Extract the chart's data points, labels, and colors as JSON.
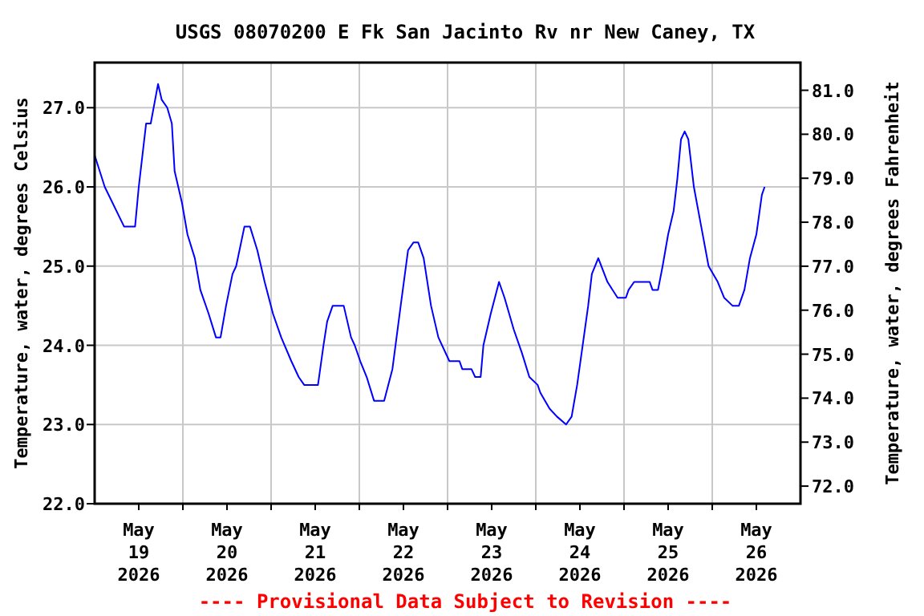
{
  "chart_data": {
    "type": "line",
    "title": "USGS 08070200 E Fk San Jacinto Rv nr New Caney, TX",
    "ylabel": "Temperature, water, degrees Celsius",
    "y2label": "Temperature, water, degrees Fahrenheit",
    "annotations": [
      "---- Provisional Data Subject to Revision ----"
    ],
    "x": [
      "2026-05-19T00:00",
      "2026-05-19T02:45",
      "2026-05-19T08:00",
      "2026-05-19T11:00",
      "2026-05-19T12:00",
      "2026-05-19T14:00",
      "2026-05-19T15:15",
      "2026-05-19T17:15",
      "2026-05-19T18:15",
      "2026-05-19T19:45",
      "2026-05-19T21:00",
      "2026-05-19T21:45",
      "2026-05-19T23:45",
      "2026-05-20T01:15",
      "2026-05-20T03:15",
      "2026-05-20T04:45",
      "2026-05-20T07:00",
      "2026-05-20T09:00",
      "2026-05-20T10:15",
      "2026-05-20T11:45",
      "2026-05-20T13:30",
      "2026-05-20T14:30",
      "2026-05-20T16:45",
      "2026-05-20T18:15",
      "2026-05-20T20:15",
      "2026-05-20T22:15",
      "2026-05-21T00:30",
      "2026-05-21T02:45",
      "2026-05-21T05:30",
      "2026-05-21T07:30",
      "2026-05-21T09:00",
      "2026-05-21T12:45",
      "2026-05-21T14:15",
      "2026-05-21T15:15",
      "2026-05-21T16:45",
      "2026-05-21T19:45",
      "2026-05-21T21:45",
      "2026-05-21T22:45",
      "2026-05-22T00:15",
      "2026-05-22T02:00",
      "2026-05-22T04:00",
      "2026-05-22T06:45",
      "2026-05-22T09:00",
      "2026-05-22T11:15",
      "2026-05-22T13:15",
      "2026-05-22T14:45",
      "2026-05-22T16:00",
      "2026-05-22T17:30",
      "2026-05-22T19:30",
      "2026-05-22T21:30",
      "2026-05-23T00:30",
      "2026-05-23T03:15",
      "2026-05-23T04:00",
      "2026-05-23T06:30",
      "2026-05-23T07:30",
      "2026-05-23T09:00",
      "2026-05-23T09:45",
      "2026-05-23T11:45",
      "2026-05-23T14:00",
      "2026-05-23T15:30",
      "2026-05-23T18:00",
      "2026-05-23T20:15",
      "2026-05-23T22:15",
      "2026-05-24T00:30",
      "2026-05-24T01:15",
      "2026-05-24T03:45",
      "2026-05-24T05:45",
      "2026-05-24T08:15",
      "2026-05-24T09:45",
      "2026-05-24T11:15",
      "2026-05-24T12:45",
      "2026-05-24T14:15",
      "2026-05-24T15:15",
      "2026-05-24T17:00",
      "2026-05-24T19:30",
      "2026-05-24T22:15",
      "2026-05-25T00:30",
      "2026-05-25T01:15",
      "2026-05-25T02:45",
      "2026-05-25T07:00",
      "2026-05-25T07:45",
      "2026-05-25T09:15",
      "2026-05-25T10:30",
      "2026-05-25T12:00",
      "2026-05-25T13:30",
      "2026-05-25T14:30",
      "2026-05-25T15:30",
      "2026-05-25T16:30",
      "2026-05-25T17:30",
      "2026-05-25T19:00",
      "2026-05-25T21:00",
      "2026-05-25T23:00",
      "2026-05-26T01:30",
      "2026-05-26T03:15",
      "2026-05-26T05:30",
      "2026-05-26T07:15",
      "2026-05-26T08:45",
      "2026-05-26T10:15",
      "2026-05-26T12:00",
      "2026-05-26T13:30",
      "2026-05-26T14:15"
    ],
    "series": [
      {
        "color": "#0000ff",
        "values": [
          26.4,
          26.0,
          25.5,
          25.5,
          26.0,
          26.8,
          26.8,
          27.3,
          27.1,
          27.0,
          26.8,
          26.2,
          25.8,
          25.4,
          25.1,
          24.7,
          24.4,
          24.1,
          24.1,
          24.5,
          24.9,
          25.0,
          25.5,
          25.5,
          25.2,
          24.8,
          24.4,
          24.1,
          23.8,
          23.6,
          23.5,
          23.5,
          24.0,
          24.3,
          24.5,
          24.5,
          24.1,
          24.0,
          23.8,
          23.6,
          23.3,
          23.3,
          23.7,
          24.5,
          25.2,
          25.3,
          25.3,
          25.1,
          24.5,
          24.1,
          23.8,
          23.8,
          23.7,
          23.7,
          23.6,
          23.6,
          24.0,
          24.4,
          24.8,
          24.6,
          24.2,
          23.9,
          23.6,
          23.5,
          23.4,
          23.2,
          23.1,
          23.0,
          23.1,
          23.5,
          24.0,
          24.5,
          24.9,
          25.1,
          24.8,
          24.6,
          24.6,
          24.7,
          24.8,
          24.8,
          24.7,
          24.7,
          25.0,
          25.4,
          25.7,
          26.1,
          26.6,
          26.7,
          26.6,
          26.0,
          25.5,
          25.0,
          24.8,
          24.6,
          24.5,
          24.5,
          24.7,
          25.1,
          25.4,
          25.9,
          26.0
        ]
      }
    ],
    "xlim": [
      "2026-05-19T00:00",
      "2026-05-27T00:00"
    ],
    "xticks": [
      {
        "value": "2026-05-19T12:00",
        "label": "May\n19\n2026"
      },
      {
        "value": "2026-05-20T00:00",
        "label": null
      },
      {
        "value": "2026-05-20T12:00",
        "label": "May\n20\n2026"
      },
      {
        "value": "2026-05-21T00:00",
        "label": null
      },
      {
        "value": "2026-05-21T12:00",
        "label": "May\n21\n2026"
      },
      {
        "value": "2026-05-22T00:00",
        "label": null
      },
      {
        "value": "2026-05-22T12:00",
        "label": "May\n22\n2026"
      },
      {
        "value": "2026-05-23T00:00",
        "label": null
      },
      {
        "value": "2026-05-23T12:00",
        "label": "May\n23\n2026"
      },
      {
        "value": "2026-05-24T00:00",
        "label": null
      },
      {
        "value": "2026-05-24T12:00",
        "label": "May\n24\n2026"
      },
      {
        "value": "2026-05-25T00:00",
        "label": null
      },
      {
        "value": "2026-05-25T12:00",
        "label": "May\n25\n2026"
      },
      {
        "value": "2026-05-26T00:00",
        "label": null
      },
      {
        "value": "2026-05-26T12:00",
        "label": "May\n26\n2026"
      }
    ],
    "ylim": [
      22,
      27.57
    ],
    "yticks": [
      {
        "value": 22,
        "label": "22.0"
      },
      {
        "value": 23,
        "label": "23.0"
      },
      {
        "value": 24,
        "label": "24.0"
      },
      {
        "value": 25,
        "label": "25.0"
      },
      {
        "value": 26,
        "label": "26.0"
      },
      {
        "value": 27,
        "label": "27.0"
      }
    ],
    "y2lim": [
      71.6,
      81.63
    ],
    "y2ticks": [
      {
        "value": 72,
        "label": "72.0"
      },
      {
        "value": 73,
        "label": "73.0"
      },
      {
        "value": 74,
        "label": "74.0"
      },
      {
        "value": 75,
        "label": "75.0"
      },
      {
        "value": 76,
        "label": "76.0"
      },
      {
        "value": 77,
        "label": "77.0"
      },
      {
        "value": 78,
        "label": "78.0"
      },
      {
        "value": 79,
        "label": "79.0"
      },
      {
        "value": 80,
        "label": "80.0"
      },
      {
        "value": 81,
        "label": "81.0"
      }
    ],
    "grid": true,
    "marker": "none",
    "line_style": "solid"
  }
}
